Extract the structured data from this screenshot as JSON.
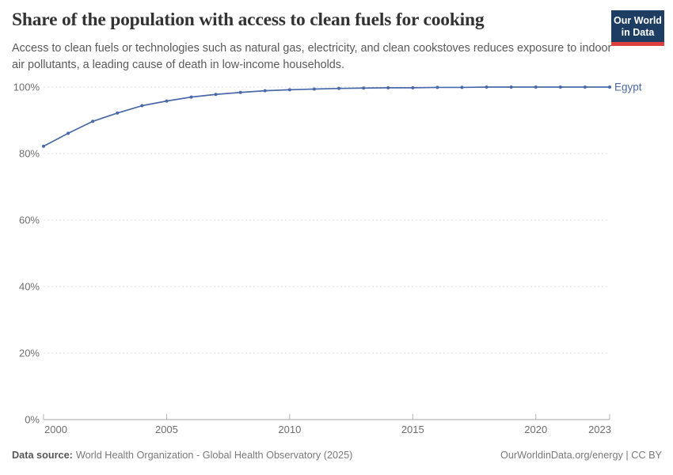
{
  "header": {
    "title": "Share of the population with access to clean fuels for cooking",
    "subtitle": "Access to clean fuels or technologies such as natural gas, electricity, and clean cookstoves reduces exposure to indoor air pollutants, a leading cause of death in low-income households.",
    "logo": {
      "line1": "Our World",
      "line2": "in Data"
    }
  },
  "chart_data": {
    "type": "line",
    "title": "Share of the population with access to clean fuels for cooking",
    "x": [
      2000,
      2001,
      2002,
      2003,
      2004,
      2005,
      2006,
      2007,
      2008,
      2009,
      2010,
      2011,
      2012,
      2013,
      2014,
      2015,
      2016,
      2017,
      2018,
      2019,
      2020,
      2021,
      2022,
      2023
    ],
    "series": [
      {
        "name": "Egypt",
        "color": "#4a69a8",
        "values": [
          82.2,
          86.1,
          89.7,
          92.2,
          94.4,
          95.8,
          97.0,
          97.8,
          98.4,
          98.9,
          99.2,
          99.4,
          99.6,
          99.7,
          99.8,
          99.8,
          99.9,
          99.9,
          100,
          100,
          100,
          100,
          100,
          100
        ]
      }
    ],
    "xlabel": "",
    "ylabel": "",
    "xlim": [
      2000,
      2023
    ],
    "ylim": [
      0,
      100
    ],
    "x_ticks": [
      2000,
      2005,
      2010,
      2015,
      2020,
      2023
    ],
    "y_ticks": [
      0,
      20,
      40,
      60,
      80,
      100
    ],
    "y_tick_suffix": "%",
    "grid": "horizontal-dashed",
    "legend": "series-end-label"
  },
  "footer": {
    "source_label": "Data source:",
    "source_text": "World Health Organization - Global Health Observatory (2025)",
    "attribution": "OurWorldinData.org/energy | CC BY"
  },
  "colors": {
    "line": "#4a69a8",
    "logo_bg": "#1d3d63",
    "logo_stripe": "#e0403d",
    "grid": "#dcdcdc",
    "axis": "#a3a3a3",
    "tick": "#b5b5b5",
    "tick_text": "#6f6f6f",
    "title_text": "#333333",
    "subtitle_text": "#5a5a5a"
  }
}
